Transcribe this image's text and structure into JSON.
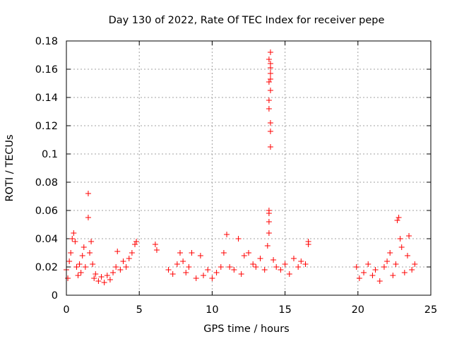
{
  "chart_data": {
    "type": "scatter",
    "title": "Day 130 of 2022, Rate Of TEC Index for receiver pepe",
    "xlabel": "GPS time / hours",
    "ylabel": "ROTI / TECUs",
    "xlim": [
      0,
      25
    ],
    "ylim": [
      0,
      0.18
    ],
    "x_ticks": [
      "0",
      "5",
      "10",
      "15",
      "20",
      "25"
    ],
    "y_ticks": [
      "0",
      "0.02",
      "0.04",
      "0.06",
      "0.08",
      "0.1",
      "0.12",
      "0.14",
      "0.16",
      "0.18"
    ],
    "grid": true,
    "marker": "+",
    "color": "#ff0000",
    "series": [
      {
        "points": [
          [
            0.0,
            0.018
          ],
          [
            0.1,
            0.012
          ],
          [
            0.2,
            0.024
          ],
          [
            0.3,
            0.03
          ],
          [
            0.4,
            0.04
          ],
          [
            0.5,
            0.044
          ],
          [
            0.6,
            0.038
          ],
          [
            0.7,
            0.02
          ],
          [
            0.8,
            0.014
          ],
          [
            0.9,
            0.022
          ],
          [
            1.0,
            0.016
          ],
          [
            1.1,
            0.028
          ],
          [
            1.2,
            0.034
          ],
          [
            1.3,
            0.02
          ],
          [
            1.5,
            0.072
          ],
          [
            1.5,
            0.055
          ],
          [
            1.6,
            0.03
          ],
          [
            1.7,
            0.038
          ],
          [
            1.8,
            0.022
          ],
          [
            1.9,
            0.012
          ],
          [
            2.0,
            0.015
          ],
          [
            2.2,
            0.01
          ],
          [
            2.4,
            0.013
          ],
          [
            2.6,
            0.009
          ],
          [
            2.8,
            0.014
          ],
          [
            3.0,
            0.011
          ],
          [
            3.2,
            0.016
          ],
          [
            3.4,
            0.02
          ],
          [
            3.5,
            0.031
          ],
          [
            3.7,
            0.018
          ],
          [
            3.9,
            0.024
          ],
          [
            4.1,
            0.02
          ],
          [
            4.3,
            0.026
          ],
          [
            4.5,
            0.03
          ],
          [
            4.7,
            0.036
          ],
          [
            4.8,
            0.038
          ],
          [
            6.1,
            0.036
          ],
          [
            6.2,
            0.032
          ],
          [
            7.0,
            0.018
          ],
          [
            7.3,
            0.015
          ],
          [
            7.6,
            0.022
          ],
          [
            7.8,
            0.03
          ],
          [
            8.0,
            0.024
          ],
          [
            8.2,
            0.016
          ],
          [
            8.4,
            0.02
          ],
          [
            8.6,
            0.03
          ],
          [
            8.9,
            0.012
          ],
          [
            9.2,
            0.028
          ],
          [
            9.4,
            0.014
          ],
          [
            9.7,
            0.018
          ],
          [
            10.0,
            0.012
          ],
          [
            10.3,
            0.016
          ],
          [
            10.6,
            0.02
          ],
          [
            10.8,
            0.03
          ],
          [
            11.0,
            0.043
          ],
          [
            11.2,
            0.02
          ],
          [
            11.5,
            0.018
          ],
          [
            11.8,
            0.04
          ],
          [
            12.0,
            0.015
          ],
          [
            12.2,
            0.028
          ],
          [
            12.5,
            0.03
          ],
          [
            12.8,
            0.022
          ],
          [
            13.0,
            0.02
          ],
          [
            13.3,
            0.026
          ],
          [
            13.6,
            0.018
          ],
          [
            13.8,
            0.035
          ],
          [
            13.9,
            0.044
          ],
          [
            13.9,
            0.052
          ],
          [
            13.9,
            0.058
          ],
          [
            13.9,
            0.06
          ],
          [
            14.0,
            0.105
          ],
          [
            14.0,
            0.116
          ],
          [
            14.0,
            0.122
          ],
          [
            13.9,
            0.132
          ],
          [
            13.9,
            0.138
          ],
          [
            14.0,
            0.145
          ],
          [
            13.9,
            0.151
          ],
          [
            14.0,
            0.153
          ],
          [
            14.0,
            0.157
          ],
          [
            14.0,
            0.161
          ],
          [
            14.0,
            0.164
          ],
          [
            13.9,
            0.167
          ],
          [
            14.0,
            0.172
          ],
          [
            14.2,
            0.025
          ],
          [
            14.4,
            0.02
          ],
          [
            14.7,
            0.018
          ],
          [
            15.0,
            0.022
          ],
          [
            15.3,
            0.015
          ],
          [
            15.6,
            0.026
          ],
          [
            15.9,
            0.02
          ],
          [
            16.1,
            0.024
          ],
          [
            16.4,
            0.022
          ],
          [
            16.6,
            0.038
          ],
          [
            16.6,
            0.036
          ],
          [
            19.9,
            0.02
          ],
          [
            20.1,
            0.012
          ],
          [
            20.4,
            0.016
          ],
          [
            20.7,
            0.022
          ],
          [
            21.0,
            0.014
          ],
          [
            21.2,
            0.018
          ],
          [
            21.5,
            0.01
          ],
          [
            21.8,
            0.02
          ],
          [
            22.0,
            0.024
          ],
          [
            22.2,
            0.03
          ],
          [
            22.4,
            0.014
          ],
          [
            22.6,
            0.022
          ],
          [
            22.7,
            0.053
          ],
          [
            22.8,
            0.055
          ],
          [
            22.9,
            0.04
          ],
          [
            23.0,
            0.034
          ],
          [
            23.2,
            0.016
          ],
          [
            23.4,
            0.028
          ],
          [
            23.5,
            0.042
          ],
          [
            23.7,
            0.018
          ],
          [
            23.9,
            0.022
          ]
        ]
      }
    ]
  }
}
